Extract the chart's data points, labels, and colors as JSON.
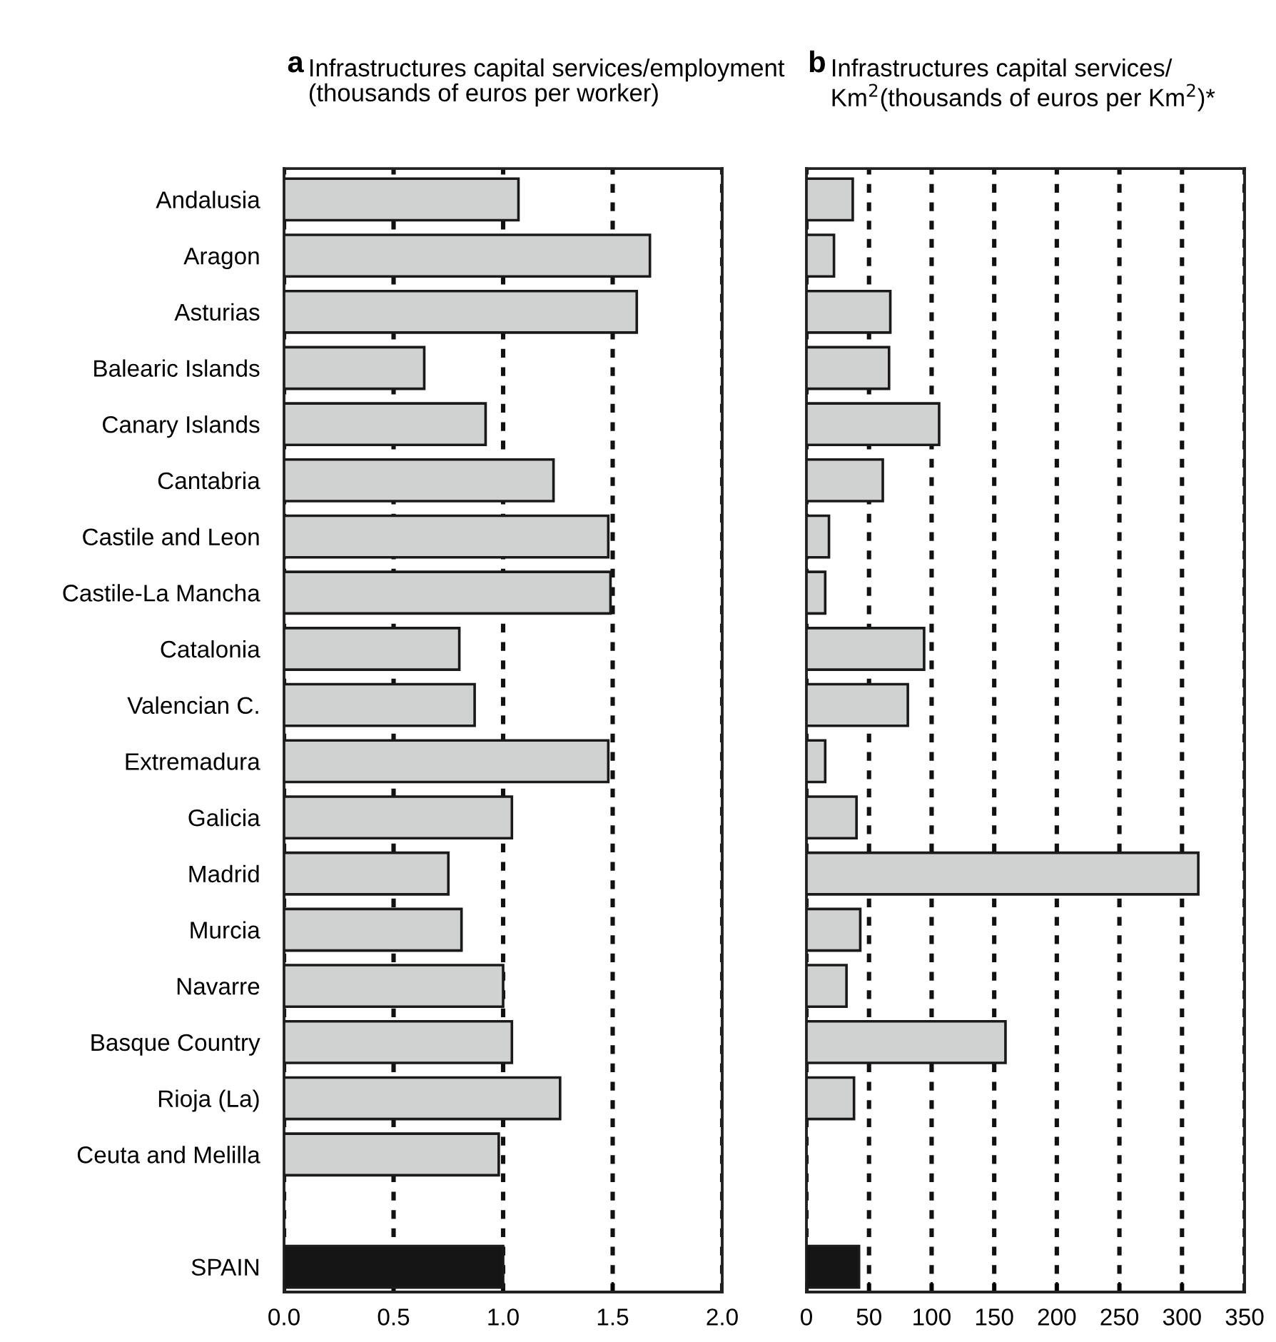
{
  "chart_data": [
    {
      "type": "bar",
      "orientation": "horizontal",
      "title": "Infrastructures capital services/employment\n(thousands of euros per worker)",
      "annotations": [
        "a"
      ],
      "categories": [
        "Andalusia",
        "Aragon",
        "Asturias",
        "Balearic Islands",
        "Canary Islands",
        "Cantabria",
        "Castile and Leon",
        "Castile-La Mancha",
        "Catalonia",
        "Valencian C.",
        "Extremadura",
        "Galicia",
        "Madrid",
        "Murcia",
        "Navarre",
        "Basque Country",
        "Rioja (La)",
        "Ceuta and Melilla",
        null,
        "SPAIN"
      ],
      "values": [
        1.07,
        1.67,
        1.61,
        0.64,
        0.92,
        1.23,
        1.48,
        1.49,
        0.8,
        0.87,
        1.48,
        1.04,
        0.75,
        0.81,
        1.0,
        1.04,
        1.26,
        0.98,
        null,
        1.0
      ],
      "colors": [
        "#d0d2d1",
        "#d0d2d1",
        "#d0d2d1",
        "#d0d2d1",
        "#d0d2d1",
        "#d0d2d1",
        "#d0d2d1",
        "#d0d2d1",
        "#d0d2d1",
        "#d0d2d1",
        "#d0d2d1",
        "#d0d2d1",
        "#d0d2d1",
        "#d0d2d1",
        "#d0d2d1",
        "#d0d2d1",
        "#d0d2d1",
        "#d0d2d1",
        "#d0d2d1",
        "#151515"
      ],
      "xlim": [
        0,
        2.0
      ],
      "xticks": [
        {
          "value": 0,
          "label": "0.0"
        },
        0.5,
        {
          "value": 1,
          "label": "1.0"
        },
        1.5,
        {
          "value": 2,
          "label": "2.0"
        }
      ],
      "grid": "x"
    },
    {
      "type": "bar",
      "orientation": "horizontal",
      "title": "Infrastructures capital services/\nKm$^{2}$(thousands of euros per Km$^{2}$)*",
      "annotations": [
        "b"
      ],
      "categories": [
        null,
        null,
        null,
        null,
        null,
        null,
        null,
        null,
        null,
        null,
        null,
        null,
        null,
        null,
        null,
        null,
        null,
        null,
        null,
        null
      ],
      "values": [
        37,
        22,
        67,
        66,
        106,
        61,
        18,
        15,
        94,
        81,
        15,
        40,
        313,
        43,
        32,
        159,
        38,
        null,
        null,
        42
      ],
      "colors": [
        "#d0d2d1",
        "#d0d2d1",
        "#d0d2d1",
        "#d0d2d1",
        "#d0d2d1",
        "#d0d2d1",
        "#d0d2d1",
        "#d0d2d1",
        "#d0d2d1",
        "#d0d2d1",
        "#d0d2d1",
        "#d0d2d1",
        "#d0d2d1",
        "#d0d2d1",
        "#d0d2d1",
        "#d0d2d1",
        "#d0d2d1",
        "#d0d2d1",
        "#d0d2d1",
        "#151515"
      ],
      "xlim": [
        0,
        350
      ],
      "xticks": [
        0,
        50,
        100,
        150,
        200,
        250,
        300,
        350
      ],
      "grid": "x",
      "tick_labels": "x"
    }
  ]
}
